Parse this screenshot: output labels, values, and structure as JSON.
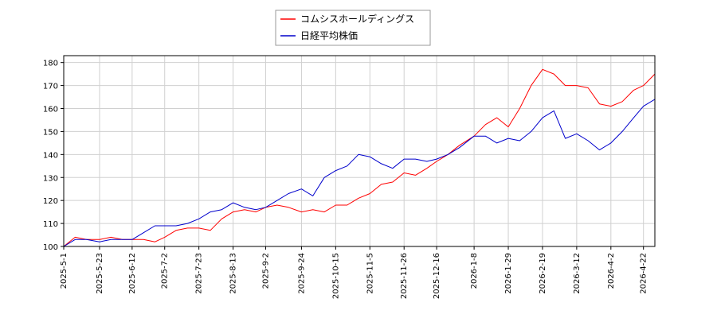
{
  "chart_data": {
    "type": "line",
    "title": "",
    "xlabel": "",
    "ylabel": "",
    "ylim": [
      100,
      183
    ],
    "grid": true,
    "legend_position": "top-center",
    "x_ticks": [
      "2025-5-1",
      "2025-5-23",
      "2025-6-12",
      "2025-7-2",
      "2025-7-23",
      "2025-8-13",
      "2025-9-2",
      "2025-9-24",
      "2025-10-15",
      "2025-11-5",
      "2025-11-26",
      "2025-12-16",
      "2026-1-8",
      "2026-1-29",
      "2026-2-19",
      "2026-3-12",
      "2026-4-2",
      "2026-4-22"
    ],
    "y_ticks": [
      100,
      110,
      120,
      130,
      140,
      150,
      160,
      170,
      180
    ],
    "x": [
      "2025-5-1",
      "2025-5-8",
      "2025-5-15",
      "2025-5-23",
      "2025-5-30",
      "2025-6-6",
      "2025-6-12",
      "2025-6-19",
      "2025-6-26",
      "2025-7-2",
      "2025-7-9",
      "2025-7-16",
      "2025-7-23",
      "2025-7-30",
      "2025-8-6",
      "2025-8-13",
      "2025-8-20",
      "2025-8-27",
      "2025-9-2",
      "2025-9-9",
      "2025-9-16",
      "2025-9-24",
      "2025-10-1",
      "2025-10-8",
      "2025-10-15",
      "2025-10-22",
      "2025-10-29",
      "2025-11-5",
      "2025-11-12",
      "2025-11-19",
      "2025-11-26",
      "2025-12-3",
      "2025-12-10",
      "2025-12-16",
      "2025-12-23",
      "2025-12-30",
      "2026-1-8",
      "2026-1-15",
      "2026-1-22",
      "2026-1-29",
      "2026-2-5",
      "2026-2-12",
      "2026-2-19",
      "2026-2-26",
      "2026-3-5",
      "2026-3-12",
      "2026-3-19",
      "2026-3-26",
      "2026-4-2",
      "2026-4-9",
      "2026-4-16",
      "2026-4-22",
      "2026-4-29"
    ],
    "series": [
      {
        "name": "コムシスホールディングス",
        "color": "#ff0000",
        "values": [
          100,
          104,
          103,
          103,
          104,
          103,
          103,
          103,
          102,
          104,
          107,
          108,
          108,
          107,
          112,
          115,
          116,
          115,
          117,
          118,
          117,
          115,
          116,
          115,
          118,
          118,
          121,
          123,
          127,
          128,
          132,
          131,
          134,
          137,
          140,
          144,
          148,
          153,
          156,
          152,
          160,
          170,
          177,
          175,
          170,
          170,
          169,
          162,
          161,
          163,
          168,
          170,
          175
        ]
      },
      {
        "name": "日経平均株価",
        "color": "#0000cc",
        "values": [
          100,
          103,
          103,
          102,
          103,
          103,
          103,
          106,
          109,
          109,
          109,
          110,
          112,
          115,
          116,
          119,
          117,
          116,
          117,
          120,
          123,
          125,
          122,
          130,
          133,
          135,
          140,
          139,
          136,
          134,
          138,
          138,
          137,
          138,
          140,
          143,
          148,
          148,
          145,
          147,
          146,
          150,
          156,
          159,
          147,
          149,
          146,
          142,
          145,
          150,
          156,
          161,
          164
        ]
      }
    ]
  }
}
